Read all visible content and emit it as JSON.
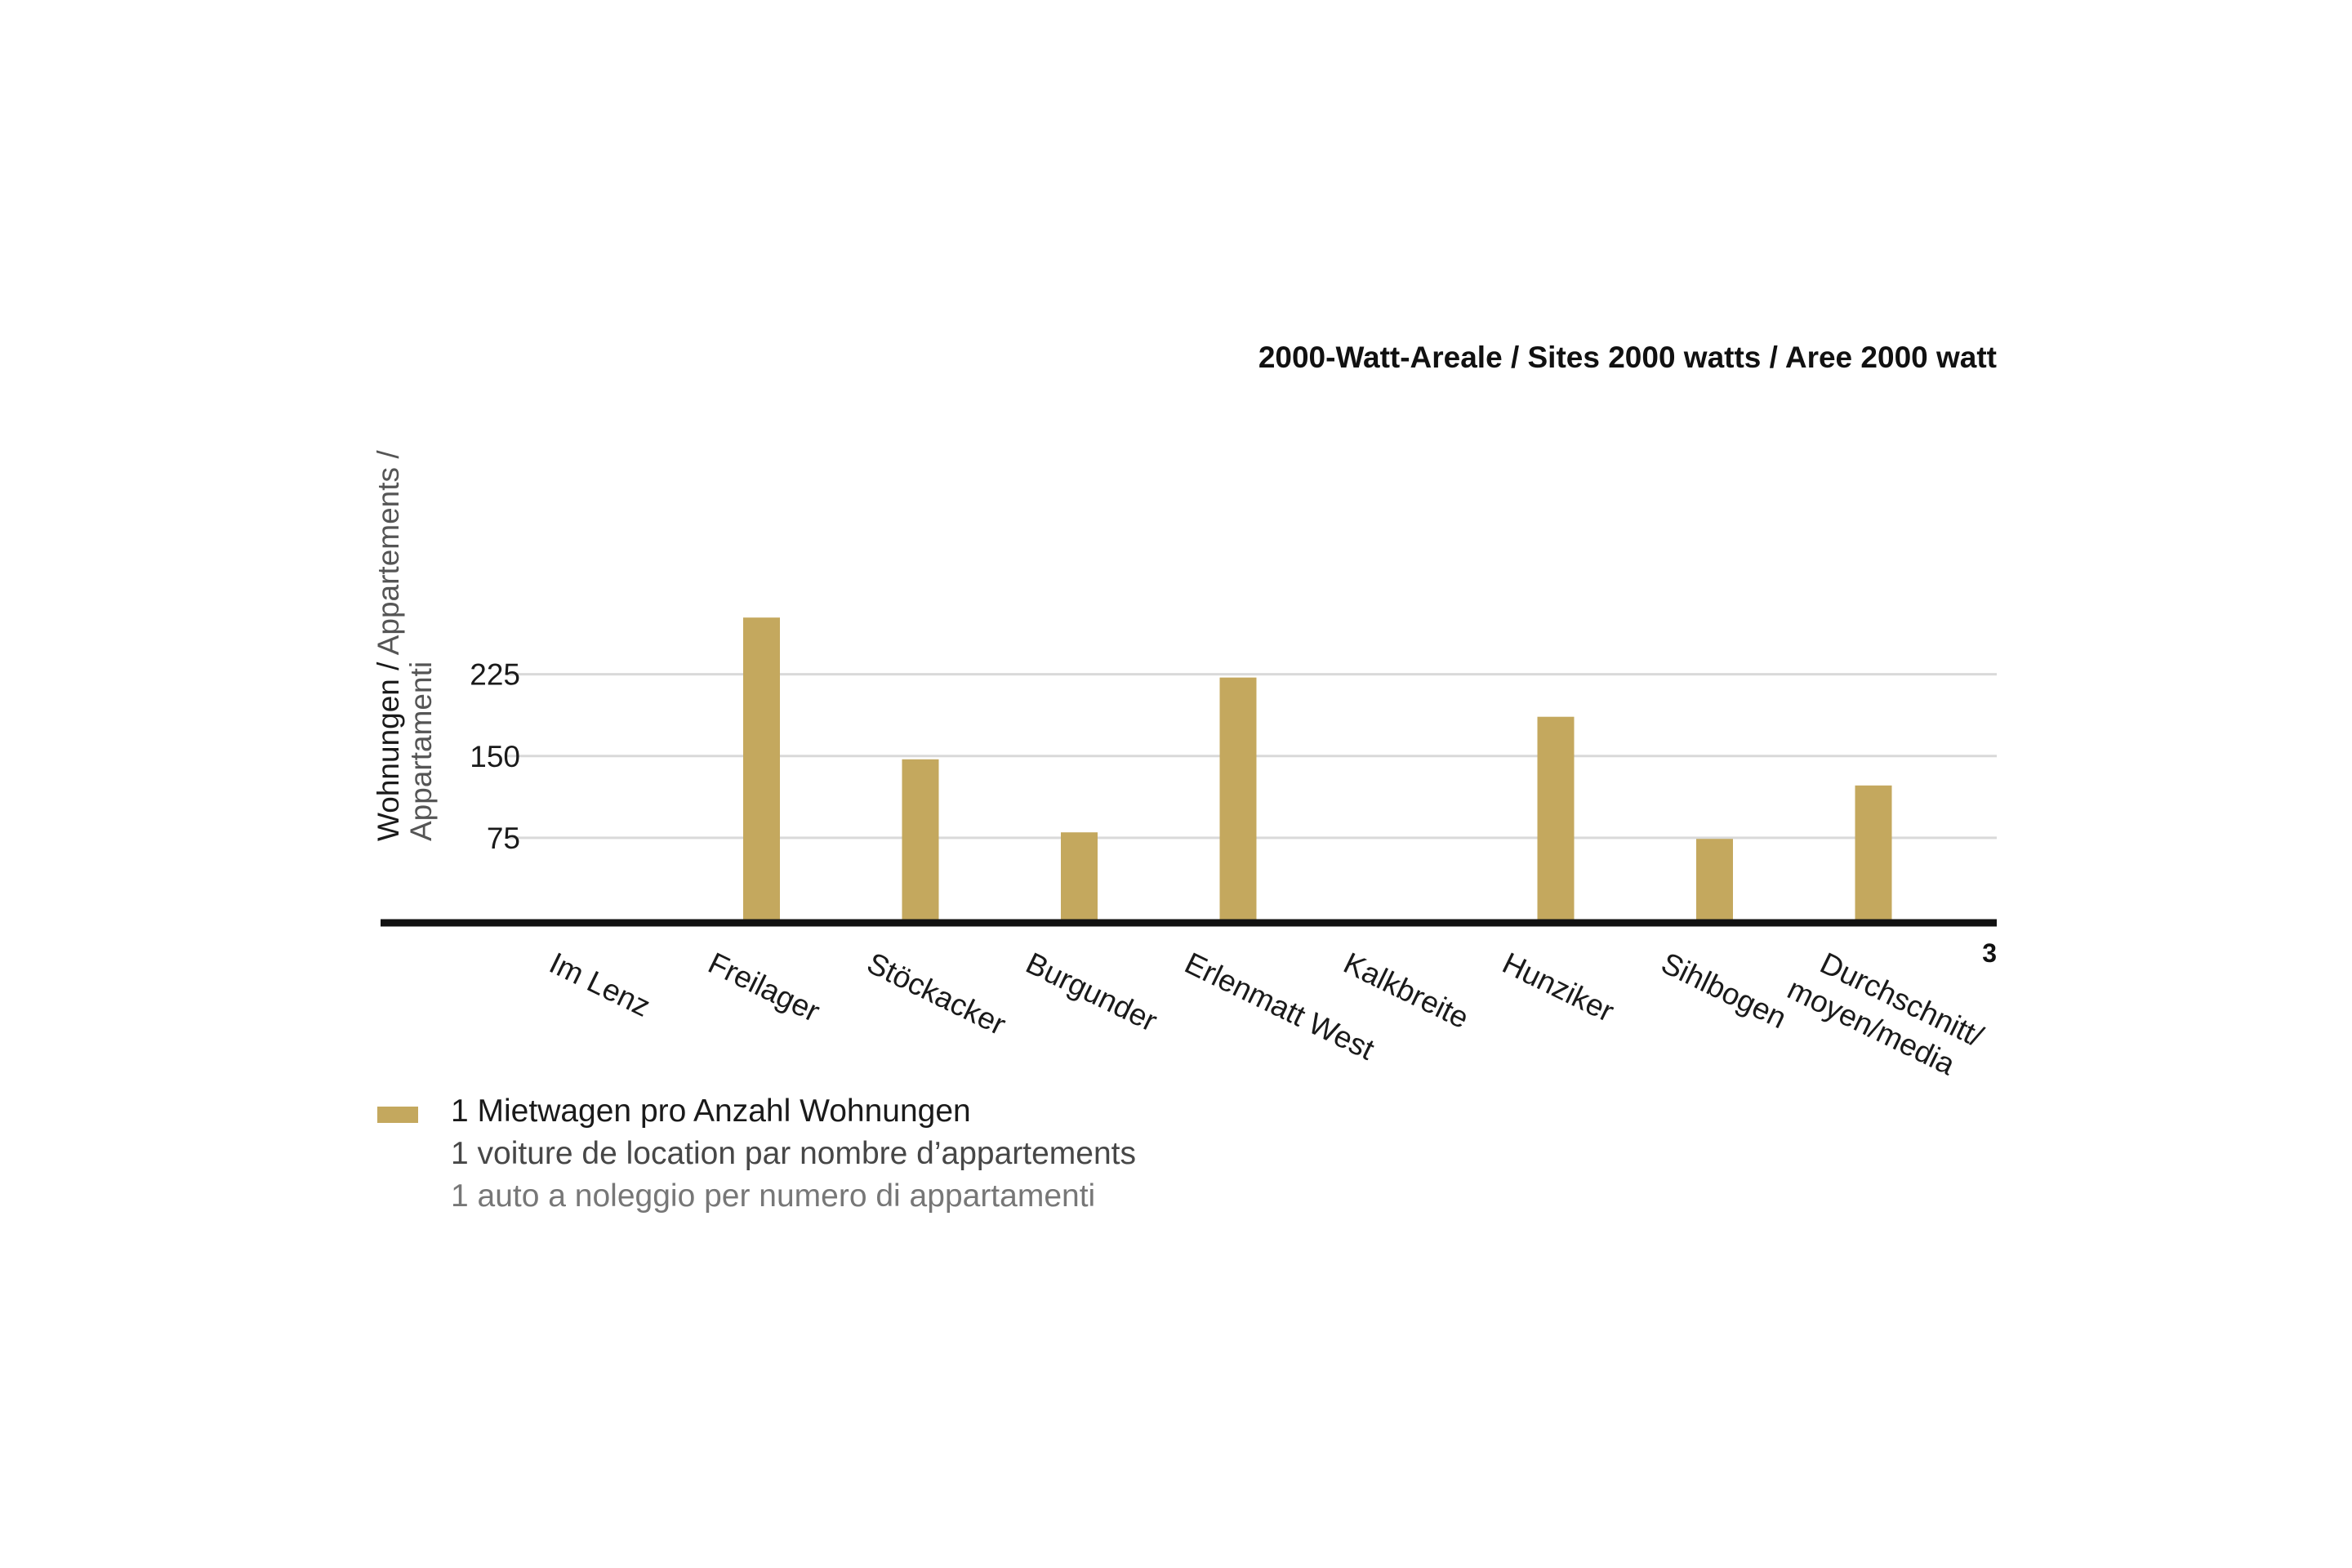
{
  "chart_data": {
    "type": "bar",
    "title": "2000-Watt-Areale / Sites 2000 watts / Aree 2000 watt",
    "ylabel": {
      "line1_main": "Wohnungen / ",
      "line1_rest": "Appartements /",
      "line2": "Appartamenti"
    },
    "ylim": [
      0,
      280
    ],
    "yticks": [
      75,
      150,
      225
    ],
    "grid": true,
    "page_marker": "3",
    "categories": [
      [
        "Im Lenz"
      ],
      [
        "Freilager"
      ],
      [
        "Stöckacker"
      ],
      [
        "Burgunder"
      ],
      [
        "Erlenmatt West"
      ],
      [
        "Kalkbreite"
      ],
      [
        "Hunziker"
      ],
      [
        "Sihlbogen"
      ],
      [
        "Durchschnitt/",
        "moyen/media"
      ]
    ],
    "series": [
      {
        "name": "1 Mietwagen pro Anzahl Wohnungen",
        "color": "#c4a85e",
        "values": [
          0,
          277,
          147,
          80,
          222,
          0,
          186,
          74,
          123
        ]
      }
    ]
  },
  "legend": {
    "items": [
      {
        "color": "#c4a85e",
        "lines": [
          "1 Mietwagen pro Anzahl Wohnungen",
          "1 voiture de location par nombre d’appartements",
          "1 auto a noleggio per numero di appartamenti"
        ]
      }
    ]
  },
  "colors": {
    "bar": "#c4a85e",
    "axis": "#111111",
    "grid": "#d9d9d9",
    "text": "#1a1a1a"
  }
}
